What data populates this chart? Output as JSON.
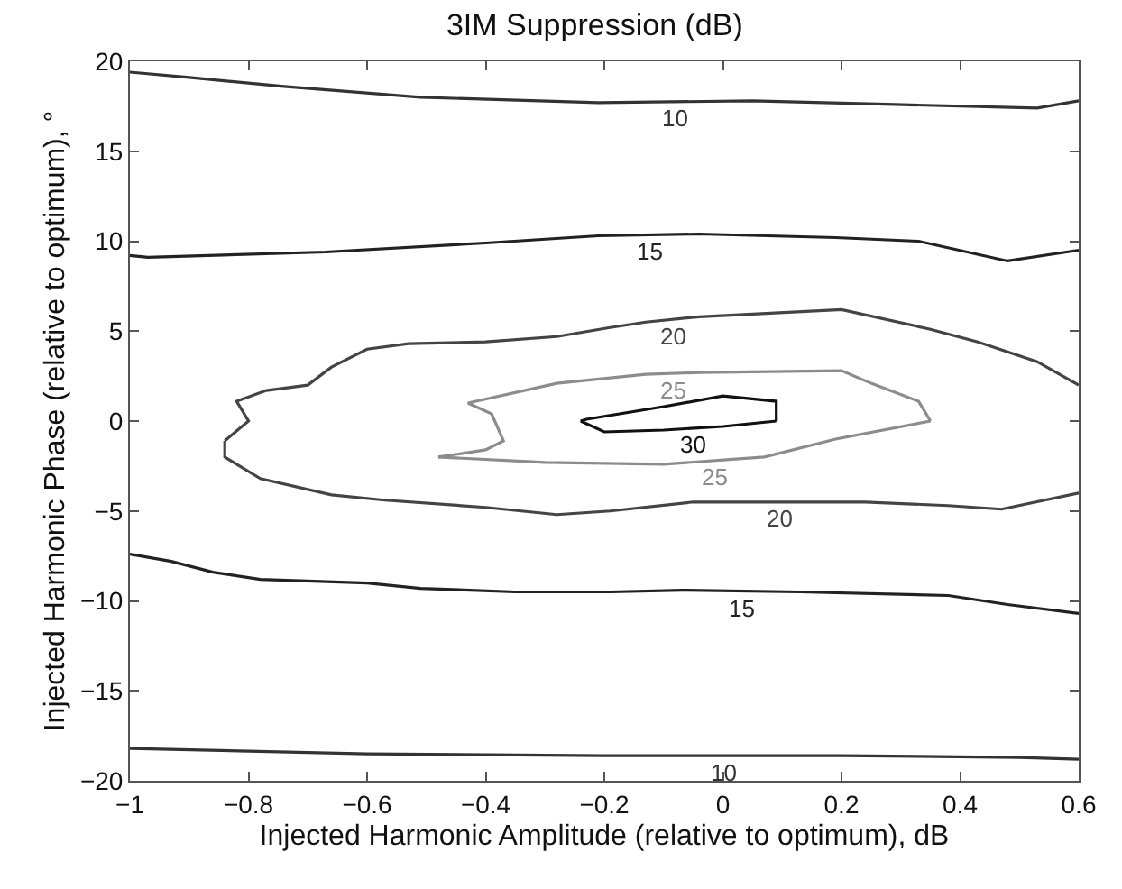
{
  "chart_data": {
    "type": "line",
    "title": "3IM Suppression (dB)",
    "xlabel": "Injected Harmonic Amplitude (relative to optimum), dB",
    "ylabel": "Injected Harmonic Phase (relative to optimum), °",
    "xlim": [
      -1,
      0.6
    ],
    "ylim": [
      -20,
      20
    ],
    "xticks": [
      -1,
      -0.8,
      -0.6,
      -0.4,
      -0.2,
      0,
      0.2,
      0.4,
      0.6
    ],
    "yticks": [
      -20,
      -15,
      -10,
      -5,
      0,
      5,
      10,
      15,
      20
    ],
    "grid": false,
    "legend": false,
    "marker": "none",
    "line_style": "solid",
    "series": [
      {
        "name": "10",
        "color": "#333333",
        "x": [
          -1,
          -0.9,
          -0.74,
          -0.51,
          -0.21,
          0.05,
          0.29,
          0.53,
          0.6
        ],
        "values": [
          19.4,
          19.1,
          18.6,
          18.0,
          17.7,
          17.8,
          17.6,
          17.4,
          17.8
        ]
      },
      {
        "name": "15",
        "color": "#222222",
        "x": [
          -1,
          -0.97,
          -0.67,
          -0.4,
          -0.21,
          -0.04,
          0.19,
          0.33,
          0.48,
          0.6
        ],
        "values": [
          9.2,
          9.1,
          9.4,
          9.9,
          10.3,
          10.4,
          10.2,
          10.0,
          8.9,
          9.5
        ]
      },
      {
        "name": "20",
        "color": "#444444",
        "x": [
          0.6,
          0.53,
          0.43,
          0.35,
          0.2,
          -0.04,
          -0.13,
          -0.19,
          -0.28,
          -0.4,
          -0.53,
          -0.6,
          -0.66,
          -0.7,
          -0.77,
          -0.82,
          -0.8,
          -0.84
        ],
        "values": [
          2.0,
          3.3,
          4.4,
          5.1,
          6.2,
          5.8,
          5.5,
          5.2,
          4.7,
          4.4,
          4.3,
          4.0,
          3.0,
          2.0,
          1.7,
          1.1,
          0,
          -1.1
        ]
      },
      {
        "name": "20",
        "color": "#444444",
        "x": [
          -0.84,
          -0.84,
          -0.78,
          -0.66,
          -0.57,
          -0.4,
          -0.28,
          -0.19,
          -0.05,
          0.24,
          0.38,
          0.47,
          0.6
        ],
        "values": [
          -1.1,
          -2.0,
          -3.2,
          -4.1,
          -4.4,
          -4.8,
          -5.2,
          -5.0,
          -4.5,
          -4.5,
          -4.7,
          -4.9,
          -4.0
        ]
      },
      {
        "name": "25",
        "color": "#8c8c8c",
        "x": [
          0.35,
          0.33,
          0.25,
          0.2,
          -0.04,
          -0.13,
          -0.28,
          -0.43,
          -0.39,
          -0.37,
          -0.4,
          -0.48
        ],
        "values": [
          0,
          1.1,
          2.1,
          2.8,
          2.7,
          2.6,
          2.1,
          1.0,
          0.4,
          -1.1,
          -1.6,
          -2.0
        ]
      },
      {
        "name": "25",
        "color": "#8c8c8c",
        "x": [
          -0.48,
          -0.3,
          -0.1,
          0.07,
          0.19,
          0.35
        ],
        "values": [
          -2.0,
          -2.3,
          -2.4,
          -2.0,
          -1.0,
          0
        ]
      },
      {
        "name": "30",
        "color": "#111111",
        "x": [
          -0.24,
          -0.2,
          -0.1,
          0,
          0.09
        ],
        "values": [
          0,
          -0.6,
          -0.5,
          -0.3,
          0
        ]
      },
      {
        "color": "#111111",
        "x": [
          0.09,
          0.09,
          0,
          -0.1,
          -0.23,
          -0.24
        ],
        "values": [
          0,
          1.1,
          1.4,
          0.8,
          0.1,
          0
        ]
      },
      {
        "name": "15",
        "color": "#222222",
        "x": [
          -1,
          -0.93,
          -0.86,
          -0.78,
          -0.6,
          -0.51,
          -0.35,
          -0.19,
          -0.07,
          0.13,
          0.38,
          0.48,
          0.6
        ],
        "values": [
          -7.4,
          -7.8,
          -8.4,
          -8.8,
          -9.0,
          -9.3,
          -9.5,
          -9.5,
          -9.4,
          -9.5,
          -9.7,
          -10.2,
          -10.7
        ]
      },
      {
        "name": "10",
        "color": "#333333",
        "x": [
          -1,
          -0.6,
          -0.2,
          0.2,
          0.5,
          0.6
        ],
        "values": [
          -18.2,
          -18.5,
          -18.6,
          -18.6,
          -18.7,
          -18.8
        ]
      }
    ]
  }
}
